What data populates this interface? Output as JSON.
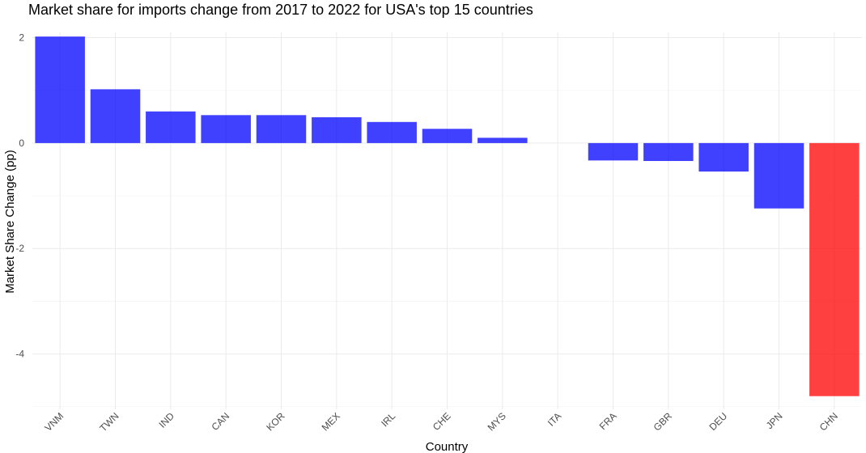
{
  "chart_data": {
    "type": "bar",
    "title": "Market share for imports change from 2017 to 2022 for USA's top 15 countries",
    "xlabel": "Country",
    "ylabel": "Market Share Change (pp)",
    "categories": [
      "VNM",
      "TWN",
      "IND",
      "CAN",
      "KOR",
      "MEX",
      "IRL",
      "CHE",
      "MYS",
      "ITA",
      "FRA",
      "GBR",
      "DEU",
      "JPN",
      "CHN"
    ],
    "values": [
      2.02,
      1.02,
      0.6,
      0.53,
      0.53,
      0.49,
      0.4,
      0.27,
      0.1,
      0.0,
      -0.33,
      -0.34,
      -0.54,
      -1.24,
      -4.8
    ],
    "highlight": "CHN",
    "ylim": [
      -5.05,
      2.1
    ],
    "yticks": [
      -4,
      -2,
      0,
      2
    ],
    "grid": true,
    "colors": {
      "default": "#0000ff",
      "highlight": "#ff0000"
    },
    "bar_opacity": 0.75
  }
}
